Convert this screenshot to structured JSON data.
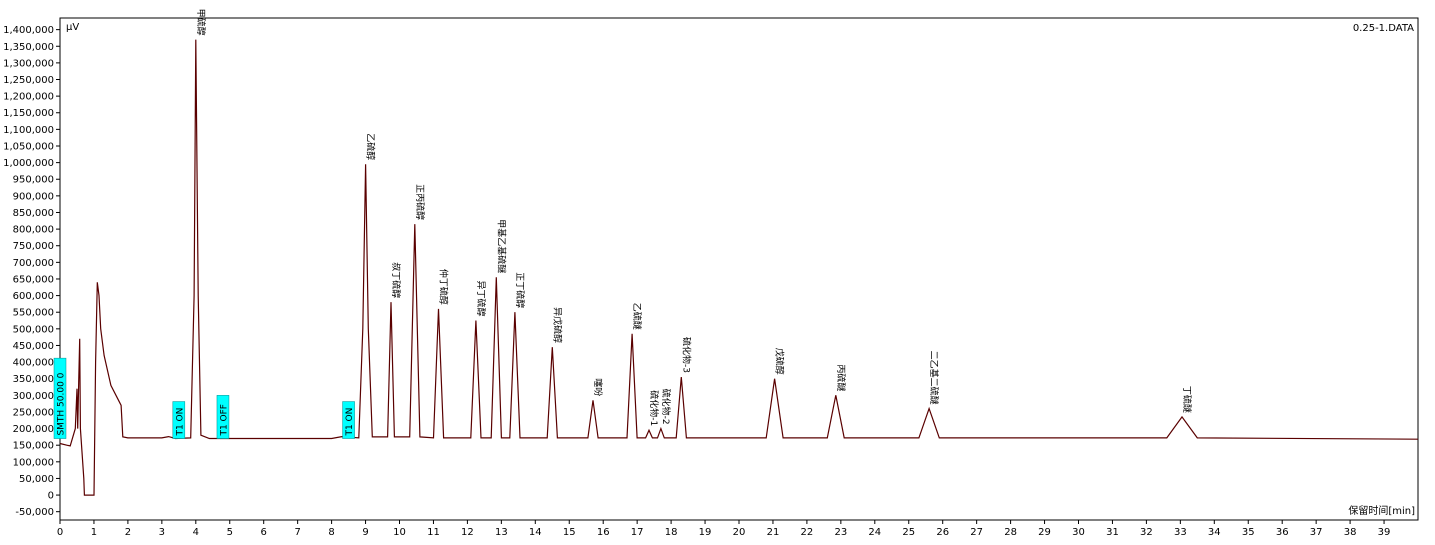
{
  "chart_data": {
    "type": "line",
    "title": "0.25-1.DATA",
    "y_label": "μV",
    "x_label": "保留时间[min]",
    "xlim": [
      0,
      40
    ],
    "ylim": [
      -75000,
      1435000
    ],
    "xticks": [
      0,
      1,
      2,
      3,
      4,
      5,
      6,
      7,
      8,
      9,
      10,
      11,
      12,
      13,
      14,
      15,
      16,
      17,
      18,
      19,
      20,
      21,
      22,
      23,
      24,
      25,
      26,
      27,
      28,
      29,
      30,
      31,
      32,
      33,
      34,
      35,
      36,
      37,
      38,
      39
    ],
    "yticks": [
      {
        "value": -50000,
        "label": "-50,000"
      },
      0,
      {
        "value": 50000,
        "label": "50,000"
      },
      {
        "value": 100000,
        "label": "100,000"
      },
      {
        "value": 150000,
        "label": "150,000"
      },
      {
        "value": 200000,
        "label": "200,000"
      },
      {
        "value": 250000,
        "label": "250,000"
      },
      {
        "value": 300000,
        "label": "300,000"
      },
      {
        "value": 350000,
        "label": "350,000"
      },
      {
        "value": 400000,
        "label": "400,000"
      },
      {
        "value": 450000,
        "label": "450,000"
      },
      {
        "value": 500000,
        "label": "500,000"
      },
      {
        "value": 550000,
        "label": "550,000"
      },
      {
        "value": 600000,
        "label": "600,000"
      },
      {
        "value": 650000,
        "label": "650,000"
      },
      {
        "value": 700000,
        "label": "700,000"
      },
      {
        "value": 750000,
        "label": "750,000"
      },
      {
        "value": 800000,
        "label": "800,000"
      },
      {
        "value": 850000,
        "label": "850,000"
      },
      {
        "value": 900000,
        "label": "900,000"
      },
      {
        "value": 950000,
        "label": "950,000"
      },
      {
        "value": 1000000,
        "label": "1,000,000"
      },
      {
        "value": 1050000,
        "label": "1,050,000"
      },
      {
        "value": 1100000,
        "label": "1,100,000"
      },
      {
        "value": 1150000,
        "label": "1,150,000"
      },
      {
        "value": 1200000,
        "label": "1,200,000"
      },
      {
        "value": 1250000,
        "label": "1,250,000"
      },
      {
        "value": 1300000,
        "label": "1,300,000"
      },
      {
        "value": 1350000,
        "label": "1,350,000"
      },
      {
        "value": 1400000,
        "label": "1,400,000"
      }
    ],
    "x": [
      0,
      0.2,
      0.3,
      0.45,
      0.5,
      0.52,
      0.55,
      0.58,
      0.6,
      0.7,
      0.72,
      1.0,
      1.05,
      1.1,
      1.15,
      1.2,
      1.3,
      1.5,
      1.7,
      1.8,
      1.85,
      2.0,
      3.0,
      3.2,
      3.4,
      3.85,
      3.95,
      4.0,
      4.07,
      4.15,
      4.4,
      8.0,
      8.3,
      8.8,
      8.92,
      9.0,
      9.08,
      9.2,
      9.65,
      9.75,
      9.85,
      10.3,
      10.45,
      10.6,
      11.0,
      11.15,
      11.3,
      12.1,
      12.25,
      12.4,
      12.7,
      12.85,
      13.0,
      13.25,
      13.4,
      13.55,
      14.35,
      14.5,
      14.65,
      15.55,
      15.7,
      15.85,
      16.7,
      16.85,
      17.0,
      17.25,
      17.35,
      17.45,
      17.6,
      17.7,
      17.8,
      18.15,
      18.3,
      18.45,
      20.8,
      21.05,
      21.3,
      22.6,
      22.85,
      23.1,
      25.3,
      25.6,
      25.9,
      32.6,
      33.05,
      33.5,
      40
    ],
    "series": [
      {
        "name": "0.25-1.DATA",
        "color": "#5a0000",
        "values": [
          155000,
          150000,
          148000,
          200000,
          320000,
          200000,
          340000,
          470000,
          200000,
          50000,
          0,
          0,
          400000,
          640000,
          600000,
          500000,
          420000,
          330000,
          290000,
          270000,
          175000,
          172000,
          172000,
          176000,
          170000,
          172000,
          600000,
          1370000,
          600000,
          180000,
          170000,
          170000,
          176000,
          172000,
          500000,
          995000,
          500000,
          175000,
          175000,
          580000,
          175000,
          175000,
          815000,
          175000,
          172000,
          560000,
          172000,
          172000,
          525000,
          172000,
          172000,
          655000,
          172000,
          172000,
          550000,
          172000,
          172000,
          445000,
          172000,
          172000,
          285000,
          172000,
          172000,
          485000,
          172000,
          172000,
          195000,
          172000,
          172000,
          200000,
          172000,
          172000,
          355000,
          172000,
          172000,
          350000,
          172000,
          172000,
          300000,
          172000,
          172000,
          260000,
          172000,
          172000,
          235000,
          172000,
          168000
        ]
      }
    ],
    "annotations": [
      {
        "text": "甲硫醇",
        "x": 4.0
      },
      {
        "text": "乙硫醇",
        "x": 9.0
      },
      {
        "text": "叔丁硫醇",
        "x": 9.75
      },
      {
        "text": "正丙硫醇",
        "x": 10.45
      },
      {
        "text": "仲丁硫醇",
        "x": 11.15
      },
      {
        "text": "异丁硫醇",
        "x": 12.25
      },
      {
        "text": "甲基乙基硫醚",
        "x": 12.85
      },
      {
        "text": "正丁硫醇",
        "x": 13.4
      },
      {
        "text": "异戊硫醇",
        "x": 14.5
      },
      {
        "text": "噻吩",
        "x": 15.7
      },
      {
        "text": "乙硫醚",
        "x": 16.85
      },
      {
        "text": "硫化物-1",
        "x": 17.35
      },
      {
        "text": "硫化物-2",
        "x": 17.7
      },
      {
        "text": "硫化物-3",
        "x": 18.3
      },
      {
        "text": "戊硫醇",
        "x": 21.05
      },
      {
        "text": "丙硫醚",
        "x": 22.85
      },
      {
        "text": "二乙基二硫醚",
        "x": 25.6
      },
      {
        "text": "丁硫醚",
        "x": 33.05
      }
    ],
    "events": [
      {
        "text": "SMTH 50.00 0",
        "x": 0
      },
      {
        "text": "T1 ON",
        "x": 3.5
      },
      {
        "text": "T1 OFF",
        "x": 4.8
      },
      {
        "text": "T1 ON",
        "x": 8.5
      }
    ]
  }
}
